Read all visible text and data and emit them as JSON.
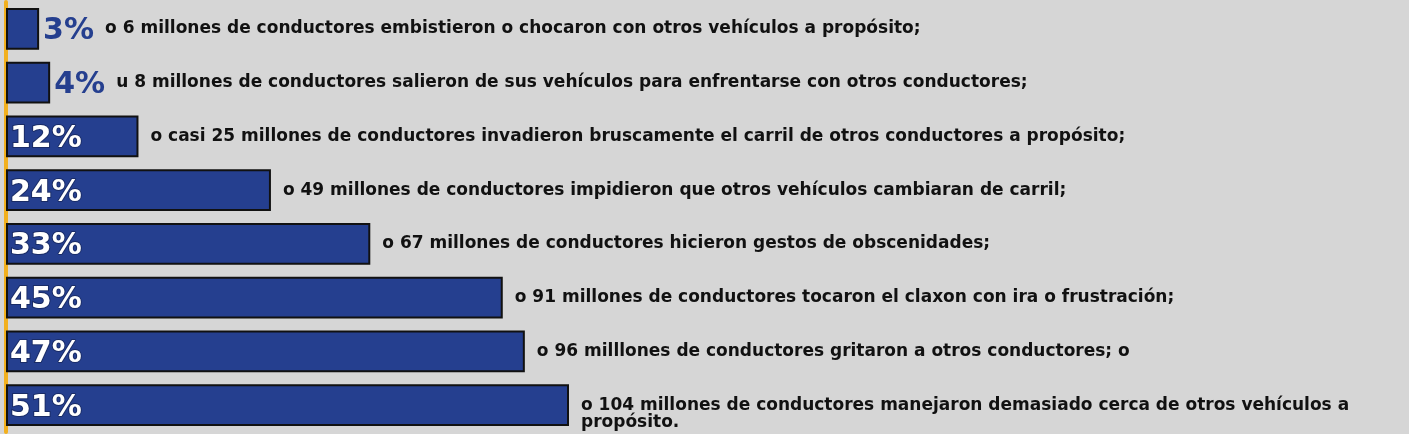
{
  "chart_data": {
    "type": "bar",
    "orientation": "horizontal",
    "categories": [
      null,
      null,
      null,
      null,
      null,
      null,
      null,
      null
    ],
    "values": [
      3,
      4,
      12,
      24,
      33,
      45,
      47,
      51
    ],
    "value_labels": [
      "3%",
      "4%",
      "12%",
      "24%",
      "33%",
      "45%",
      "47%",
      "51%"
    ],
    "color": "#253f8f",
    "annotations": [
      "o 6 millones de conductores embistieron o chocaron con otros vehículos a propósito;",
      "u 8 millones de conductores salieron de sus vehículos para enfrentarse con otros conductores;",
      "o casi 25 millones de conductores invadieron bruscamente el carril de otros conductores a propósito;",
      "o 49 millones de conductores impidieron que otros vehículos cambiaran de carril;",
      "o 67 millones de conductores hicieron gestos de obscenidades;",
      "o 91 millones de conductores tocaron el claxon con ira o frustración;",
      "o 96 milllones de conductores gritaron a otros conductores; o",
      "o 104 millones de conductores manejaron demasiado cerca de otros vehículos a propósito."
    ]
  }
}
